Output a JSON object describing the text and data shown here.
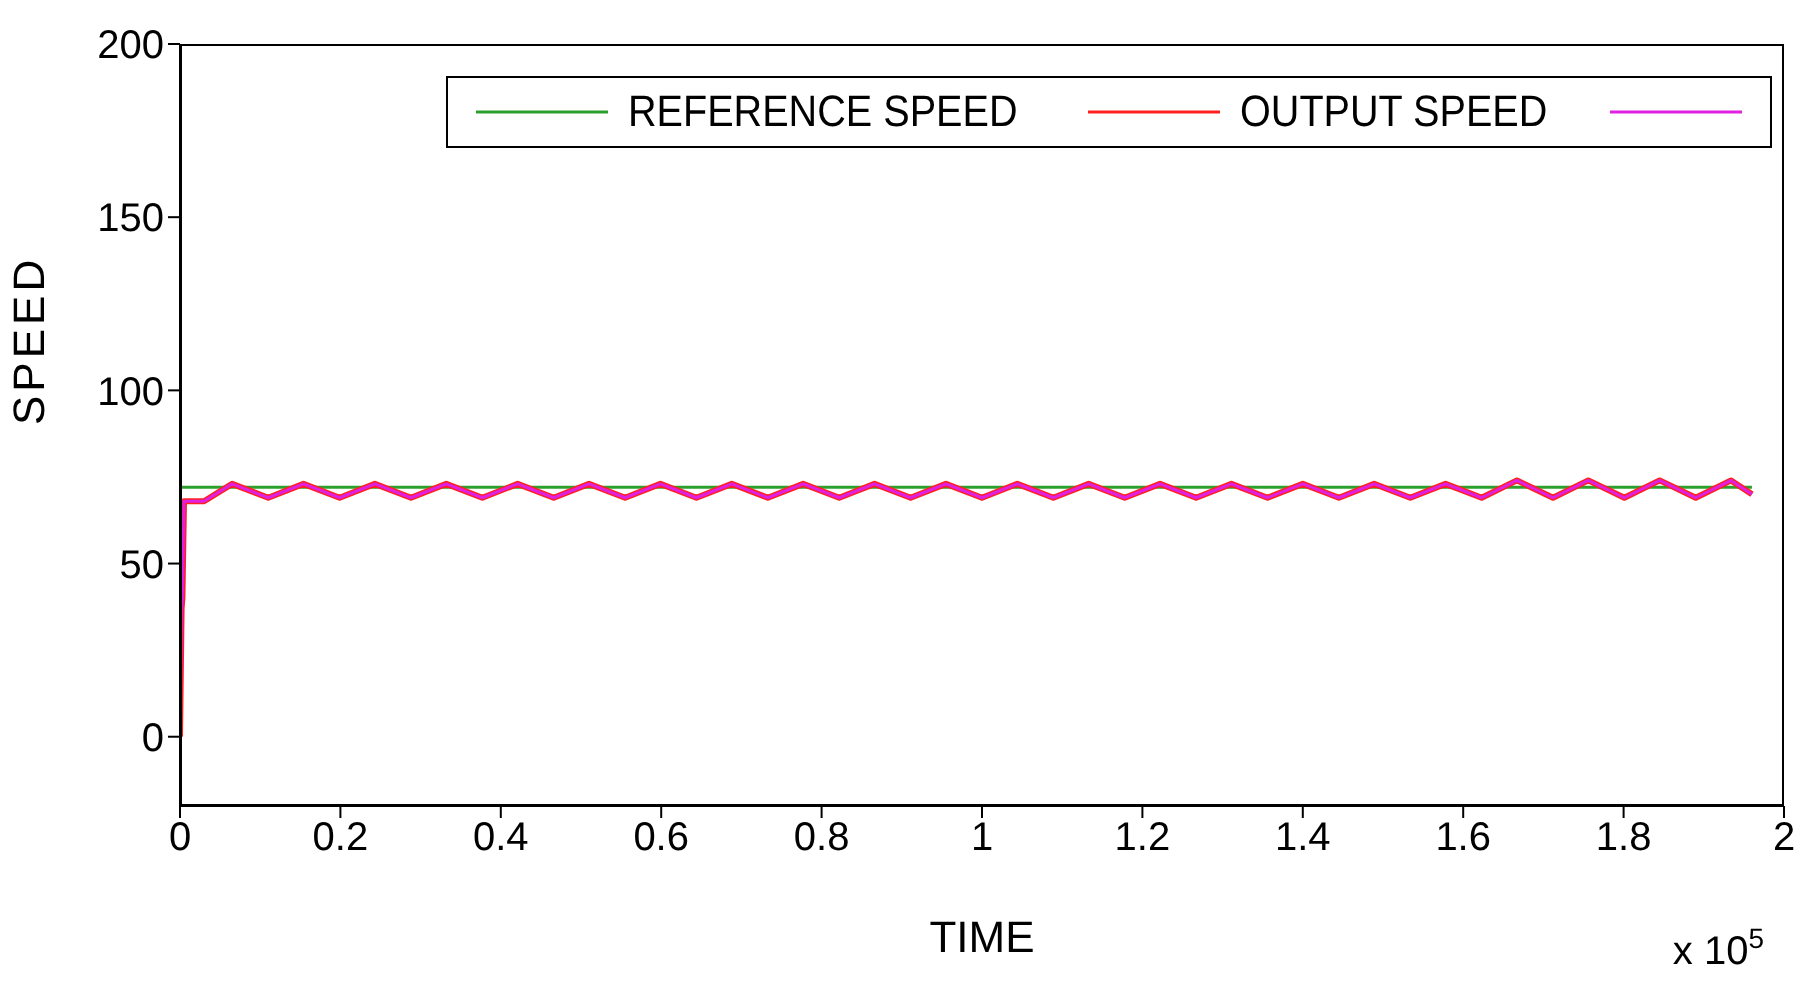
{
  "chart_data": {
    "type": "line",
    "xlabel": "TIME",
    "ylabel": "SPEED",
    "annotations": [
      "x 10$^{5}$"
    ],
    "xlim": [
      0,
      2
    ],
    "xticks": [
      0,
      0.2,
      0.4,
      0.6,
      0.8,
      1,
      1.2,
      1.4,
      1.6,
      1.8,
      2
    ],
    "ylim": [
      -20,
      200
    ],
    "yticks": [
      0,
      50,
      100,
      150,
      200
    ],
    "legend": "top right",
    "series": [
      {
        "name": "REFERENCE SPEED",
        "color": "#2ca02c",
        "x": [
          0,
          1.96
        ],
        "values": [
          72,
          72
        ]
      },
      {
        "name": "OUTPUT SPEED",
        "color": "#ff2020",
        "x": [
          0,
          0.002,
          0.003,
          0.005,
          0.03,
          0.065,
          0.11,
          0.154,
          0.199,
          0.243,
          0.288,
          0.332,
          0.377,
          0.421,
          0.466,
          0.51,
          0.555,
          0.599,
          0.644,
          0.688,
          0.733,
          0.777,
          0.822,
          0.866,
          0.911,
          0.955,
          1.0,
          1.044,
          1.089,
          1.133,
          1.178,
          1.222,
          1.267,
          1.311,
          1.356,
          1.4,
          1.445,
          1.489,
          1.534,
          1.578,
          1.623,
          1.667,
          1.712,
          1.756,
          1.801,
          1.845,
          1.89,
          1.934,
          1.96
        ],
        "values": [
          0,
          37,
          40,
          68,
          68,
          73,
          69,
          73,
          69,
          73,
          69,
          73,
          69,
          73,
          69,
          73,
          69,
          73,
          69,
          73,
          69,
          73,
          69,
          73,
          69,
          73,
          69,
          73,
          69,
          73,
          69,
          73,
          69,
          73,
          69,
          73,
          69,
          73,
          69,
          73,
          69,
          74,
          69,
          74,
          69,
          74,
          69,
          74,
          70
        ]
      },
      {
        "color": "#e020e0",
        "x": [
          0,
          0.002,
          0.003,
          0.005,
          0.03,
          0.065,
          0.11,
          0.154,
          0.199,
          0.243,
          0.288,
          0.332,
          0.377,
          0.421,
          0.466,
          0.51,
          0.555,
          0.599,
          0.644,
          0.688,
          0.733,
          0.777,
          0.822,
          0.866,
          0.911,
          0.955,
          1.0,
          1.044,
          1.089,
          1.133,
          1.178,
          1.222,
          1.267,
          1.311,
          1.356,
          1.4,
          1.445,
          1.489,
          1.534,
          1.578,
          1.623,
          1.667,
          1.712,
          1.756,
          1.801,
          1.845,
          1.89,
          1.934,
          1.96
        ],
        "values": [
          0,
          37,
          40,
          68,
          68,
          73,
          69,
          73,
          69,
          73,
          69,
          73,
          69,
          73,
          69,
          73,
          69,
          73,
          69,
          73,
          69,
          73,
          69,
          73,
          69,
          73,
          69,
          73,
          69,
          73,
          69,
          73,
          69,
          73,
          69,
          73,
          69,
          73,
          69,
          73,
          69,
          74,
          69,
          74,
          69,
          74,
          69,
          74,
          70
        ]
      }
    ]
  }
}
